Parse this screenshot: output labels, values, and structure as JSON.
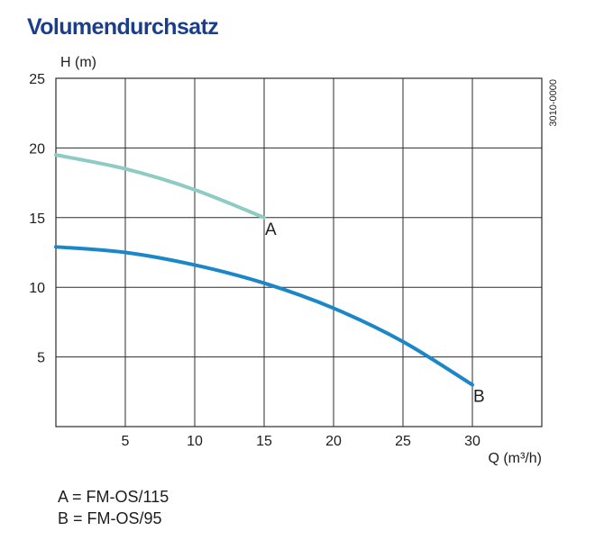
{
  "title": "Volumendurchsatz",
  "colors": {
    "title": "#1a3e8c",
    "series_a": "#8dcbc3",
    "series_b": "#1b86c8",
    "grid": "#2b2b2b"
  },
  "chart_data": {
    "type": "line",
    "title": "Volumendurchsatz",
    "xlabel": "Q (m³/h)",
    "ylabel": "H (m)",
    "xlim": [
      0,
      35
    ],
    "ylim": [
      0,
      25
    ],
    "x_ticks": [
      5,
      10,
      15,
      20,
      25,
      30
    ],
    "y_ticks": [
      5,
      10,
      15,
      20,
      25
    ],
    "x_tick_labels": [
      "5",
      "10",
      "15",
      "20",
      "25",
      "30"
    ],
    "y_tick_labels": [
      "5",
      "10",
      "15",
      "20",
      "25"
    ],
    "grid": true,
    "code": "3010-0000",
    "series": [
      {
        "name": "A",
        "x": [
          0,
          5,
          10,
          15
        ],
        "y": [
          19.5,
          18.5,
          17.0,
          15.0
        ]
      },
      {
        "name": "B",
        "x": [
          0,
          5,
          10,
          15,
          20,
          25,
          30
        ],
        "y": [
          12.9,
          12.5,
          11.6,
          10.3,
          8.5,
          6.1,
          3.0
        ]
      }
    ],
    "annotations": [
      "A",
      "B"
    ]
  },
  "legend": [
    "A = FM-OS/115",
    "B = FM-OS/95"
  ]
}
